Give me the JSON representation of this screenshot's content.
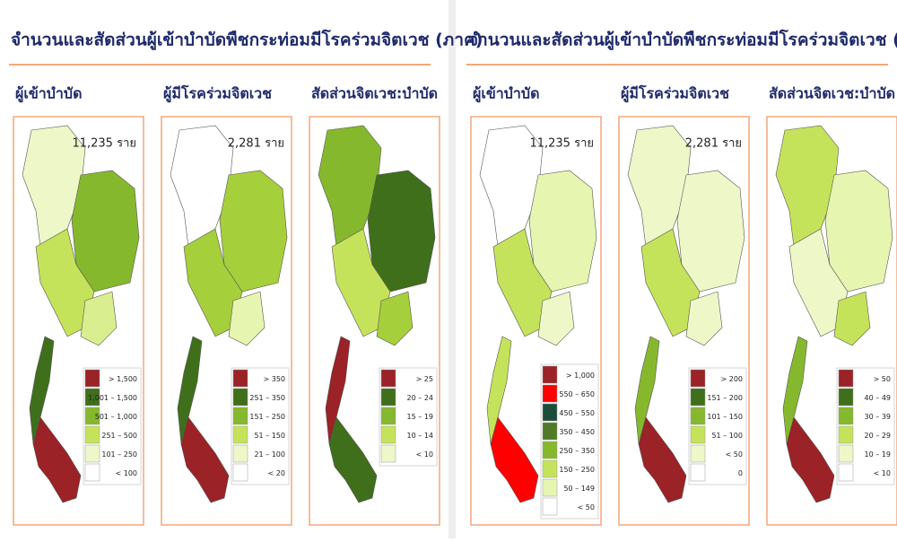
{
  "panels": [
    {
      "title": "จำนวนและสัดส่วนผู้เข้าบำบัดพืชกระท่อมมีโรคร่วมจิตเวช (ภาค)",
      "maps": [
        {
          "subtitle": "ผู้เข้าบำบัด",
          "count": "11,235 ราย",
          "legend": [
            {
              "label": "> 1,500",
              "color": "#9b2226"
            },
            {
              "label": "1,001 – 1,500",
              "color": "#3f6f1b"
            },
            {
              "label": "501 – 1,000",
              "color": "#86b82e"
            },
            {
              "label": "251 – 500",
              "color": "#c5e35a"
            },
            {
              "label": "101 – 250",
              "color": "#eef7c8"
            },
            {
              "label": "< 100",
              "color": "#ffffff"
            }
          ]
        },
        {
          "subtitle": "ผู้มีโรคร่วมจิตเวช",
          "count": "2,281 ราย",
          "legend": [
            {
              "label": "> 350",
              "color": "#9b2226"
            },
            {
              "label": "251 – 350",
              "color": "#3f6f1b"
            },
            {
              "label": "151 – 250",
              "color": "#86b82e"
            },
            {
              "label": "51 – 150",
              "color": "#c5e35a"
            },
            {
              "label": "21 – 100",
              "color": "#eef7c8"
            },
            {
              "label": "< 20",
              "color": "#ffffff"
            }
          ]
        },
        {
          "subtitle": "สัดส่วนจิตเวช:บำบัด",
          "legend": [
            {
              "label": "> 25",
              "color": "#9b2226"
            },
            {
              "label": "20 – 24",
              "color": "#3f6f1b"
            },
            {
              "label": "15 – 19",
              "color": "#86b82e"
            },
            {
              "label": "10 – 14",
              "color": "#c5e35a"
            },
            {
              "label": "< 10",
              "color": "#eef7c8"
            }
          ]
        }
      ]
    },
    {
      "title": "จำนวนและสัดส่วนผู้เข้าบำบัดพืชกระท่อมมีโรคร่วมจิตเวช (จังหวัด)",
      "maps": [
        {
          "subtitle": "ผู้เข้าบำบัด",
          "count": "11,235 ราย",
          "legend": [
            {
              "label": "> 1,000",
              "color": "#9b2226"
            },
            {
              "label": "550 – 650",
              "color": "#ff0000"
            },
            {
              "label": "450 – 550",
              "color": "#1c4d3a"
            },
            {
              "label": "350 – 450",
              "color": "#4f7a28"
            },
            {
              "label": "250 – 350",
              "color": "#86b82e"
            },
            {
              "label": "150 – 250",
              "color": "#c5e35a"
            },
            {
              "label": "50 – 149",
              "color": "#e6f5b0"
            },
            {
              "label": "< 50",
              "color": "#ffffff"
            }
          ]
        },
        {
          "subtitle": "ผู้มีโรคร่วมจิตเวช",
          "count": "2,281 ราย",
          "legend": [
            {
              "label": "> 200",
              "color": "#9b2226"
            },
            {
              "label": "151 – 200",
              "color": "#3f6f1b"
            },
            {
              "label": "101 – 150",
              "color": "#86b82e"
            },
            {
              "label": "51 – 100",
              "color": "#c5e35a"
            },
            {
              "label": "< 50",
              "color": "#eef7c8"
            },
            {
              "label": "0",
              "color": "#ffffff"
            }
          ]
        },
        {
          "subtitle": "สัดส่วนจิตเวช:บำบัด",
          "legend": [
            {
              "label": "> 50",
              "color": "#9b2226"
            },
            {
              "label": "40 – 49",
              "color": "#3f6f1b"
            },
            {
              "label": "30 – 39",
              "color": "#86b82e"
            },
            {
              "label": "20 – 29",
              "color": "#c5e35a"
            },
            {
              "label": "10 – 19",
              "color": "#eef7c8"
            },
            {
              "label": "< 10",
              "color": "#ffffff"
            }
          ]
        }
      ]
    }
  ]
}
